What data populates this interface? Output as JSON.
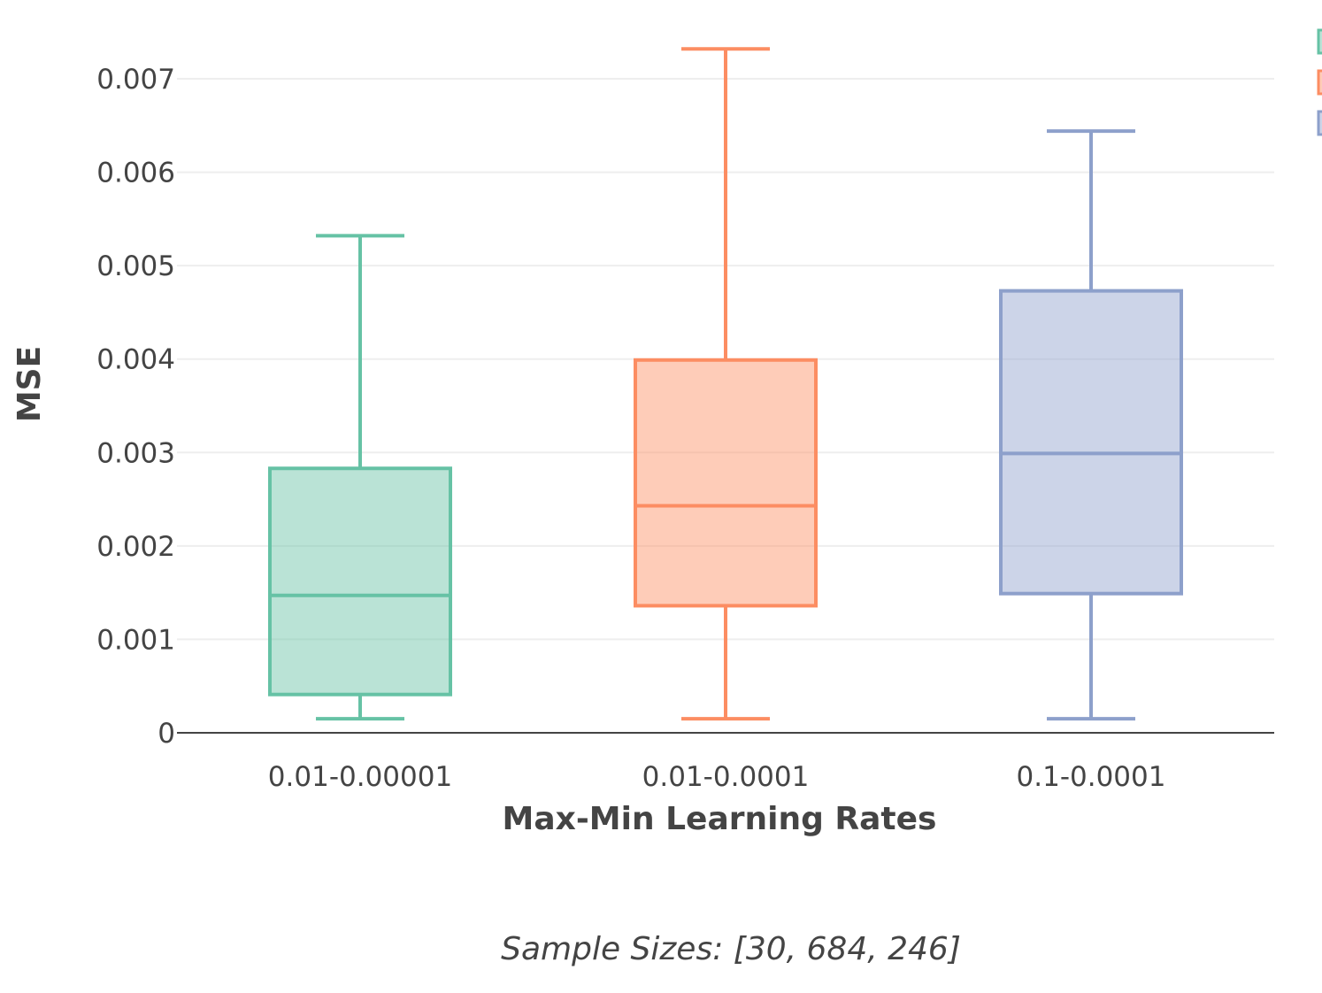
{
  "chart_data": {
    "type": "box",
    "title": "",
    "xlabel": "Max-Min Learning Rates",
    "ylabel": "MSE",
    "ylim": [
      0,
      0.0074
    ],
    "yticks": [
      {
        "value": 0,
        "label": "0"
      },
      {
        "value": 0.001,
        "label": "0.001"
      },
      {
        "value": 0.002,
        "label": "0.002"
      },
      {
        "value": 0.003,
        "label": "0.003"
      },
      {
        "value": 0.004,
        "label": "0.004"
      },
      {
        "value": 0.005,
        "label": "0.005"
      },
      {
        "value": 0.006,
        "label": "0.006"
      },
      {
        "value": 0.007,
        "label": "0.007"
      }
    ],
    "grid": true,
    "legend_position": "top-right",
    "categories": [
      "0.01-0.00001",
      "0.01-0.0001",
      "0.1-0.0001"
    ],
    "boxes": [
      {
        "category": "0.01-0.00001",
        "whisker_low": 0.00015,
        "q1": 0.00041,
        "median": 0.00147,
        "q3": 0.00283,
        "whisker_high": 0.00532,
        "color": "#66c2a5"
      },
      {
        "category": "0.01-0.0001",
        "whisker_low": 0.00015,
        "q1": 0.00136,
        "median": 0.00243,
        "q3": 0.00399,
        "whisker_high": 0.00732,
        "color": "#fc8d62"
      },
      {
        "category": "0.1-0.0001",
        "whisker_low": 0.00015,
        "q1": 0.00149,
        "median": 0.00299,
        "q3": 0.00473,
        "whisker_high": 0.00644,
        "color": "#8da0cb"
      }
    ],
    "annotation": "Sample Sizes: [30, 684, 246]"
  }
}
